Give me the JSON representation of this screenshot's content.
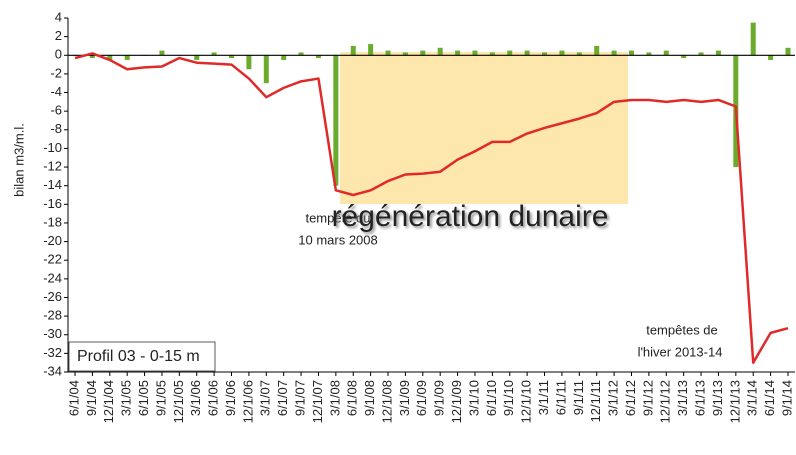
{
  "chart_data": {
    "type": "bar_line",
    "y_label": "bilan m3/m.l.",
    "legend_box": "Profil 03 - 0-15 m",
    "annotations": {
      "highlight": "régénération dunaire",
      "storm_2008": [
        "tempête du",
        "10 mars 2008"
      ],
      "storm_2014": [
        "tempêtes de",
        "l'hiver 2013-14"
      ]
    },
    "categories": [
      "6/1/04",
      "9/1/04",
      "12/1/04",
      "3/1/05",
      "6/1/05",
      "9/1/05",
      "12/1/05",
      "3/1/06",
      "6/1/06",
      "9/1/06",
      "12/1/06",
      "3/1/07",
      "6/1/07",
      "9/1/07",
      "12/1/07",
      "3/1/08",
      "6/1/08",
      "9/1/08",
      "12/1/08",
      "3/1/09",
      "6/1/09",
      "9/1/09",
      "12/1/09",
      "3/1/10",
      "6/1/10",
      "9/1/10",
      "12/1/10",
      "3/1/11",
      "6/1/11",
      "9/1/11",
      "12/1/11",
      "3/1/12",
      "6/1/12",
      "9/1/12",
      "12/1/12",
      "3/1/13",
      "6/1/13",
      "9/1/13",
      "12/1/13",
      "3/1/14",
      "6/1/14",
      "9/1/14"
    ],
    "series": [
      {
        "kind": "bar",
        "color": "#6aab2b",
        "values": [
          0,
          -0.3,
          -0.5,
          -0.5,
          0,
          0.5,
          0,
          -0.5,
          0.3,
          -0.3,
          -1.5,
          -3,
          -0.5,
          0.3,
          -0.3,
          -14,
          1,
          1.2,
          0.5,
          0.3,
          0.5,
          0.8,
          0.5,
          0.5,
          0.3,
          0.5,
          0.5,
          0.3,
          0.5,
          0.3,
          1,
          0.5,
          0.5,
          0.3,
          0.5,
          -0.3,
          0.3,
          0.5,
          -12,
          3.5,
          -0.5,
          0.8
        ]
      },
      {
        "kind": "line",
        "color": "#e02a2a",
        "values": [
          -0.3,
          0.2,
          -0.5,
          -1.5,
          -1.3,
          -1.2,
          -0.3,
          -0.8,
          -0.9,
          -1.0,
          -2.5,
          -4.5,
          -3.5,
          -2.8,
          -2.5,
          -14.5,
          -15,
          -14.5,
          -13.5,
          -12.8,
          -12.7,
          -12.5,
          -11.2,
          -10.3,
          -9.3,
          -9.3,
          -8.4,
          -7.8,
          -7.3,
          -6.8,
          -6.2,
          -5,
          -4.8,
          -4.8,
          -5,
          -4.8,
          -5,
          -4.8,
          -5.5,
          -33,
          -29.8,
          -29.3
        ]
      }
    ],
    "ylim": [
      -34,
      4
    ],
    "yticks": [
      -34,
      -32,
      -30,
      -28,
      -26,
      -24,
      -22,
      -20,
      -18,
      -16,
      -14,
      -12,
      -10,
      -8,
      -6,
      -4,
      -2,
      0,
      2,
      4
    ]
  }
}
